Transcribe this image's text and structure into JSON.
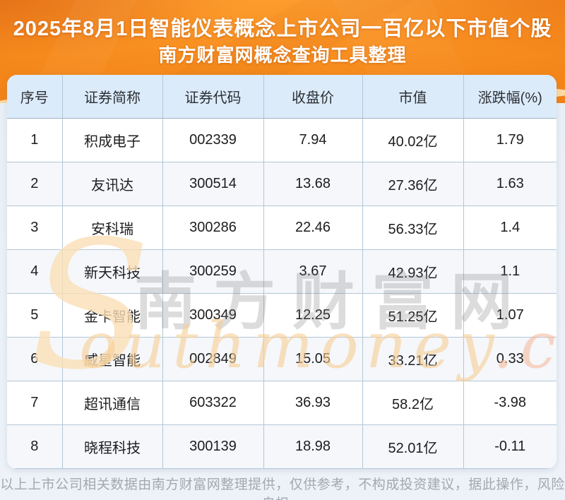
{
  "title": {
    "line1": "2025年8月1日智能仪表概念上市公司一百亿以下市值个股",
    "line2": "南方财富网概念查询工具整理"
  },
  "chart_data": {
    "type": "table",
    "title": "2025年8月1日智能仪表概念上市公司一百亿以下市值个股",
    "subtitle": "南方财富网概念查询工具整理",
    "columns": [
      "序号",
      "证券简称",
      "证券代码",
      "收盘价",
      "市值",
      "涨跌幅(%)"
    ],
    "col_keys": [
      "index",
      "name",
      "code",
      "close-price",
      "market-cap",
      "change-pct"
    ],
    "rows": [
      [
        "1",
        "积成电子",
        "002339",
        "7.94",
        "40.02亿",
        "1.79"
      ],
      [
        "2",
        "友讯达",
        "300514",
        "13.68",
        "27.36亿",
        "1.63"
      ],
      [
        "3",
        "安科瑞",
        "300286",
        "22.46",
        "56.33亿",
        "1.4"
      ],
      [
        "4",
        "新天科技",
        "300259",
        "3.67",
        "42.93亿",
        "1.1"
      ],
      [
        "5",
        "金卡智能",
        "300349",
        "12.25",
        "51.25亿",
        "1.07"
      ],
      [
        "6",
        "威星智能",
        "002849",
        "15.05",
        "33.21亿",
        "0.33"
      ],
      [
        "7",
        "超讯通信",
        "603322",
        "36.93",
        "58.2亿",
        "-3.98"
      ],
      [
        "8",
        "晓程科技",
        "300139",
        "18.98",
        "52.01亿",
        "-0.11"
      ]
    ]
  },
  "watermark": {
    "big_s": "S",
    "cn": "南方财富网",
    "latin": "outhmoney",
    "dotcom": ".com"
  },
  "footer": {
    "disclaimer": "以上上市公司相关数据由南方财富网整理提供，仅供参考，不构成投资建议，据此操作，风险自担。"
  },
  "colors": {
    "banner_orange": "#f78c1e",
    "banner_wave_peach": "#fcd9a2",
    "header_bg": "#dcebfa",
    "row_alt_bg": "#f5f7fa",
    "cell_border": "#b3c7d8",
    "page_bg": "#eaf0f7",
    "title_text": "#ffffff",
    "cell_text": "#1d1d1f",
    "footer_text": "#a2a8b1"
  }
}
